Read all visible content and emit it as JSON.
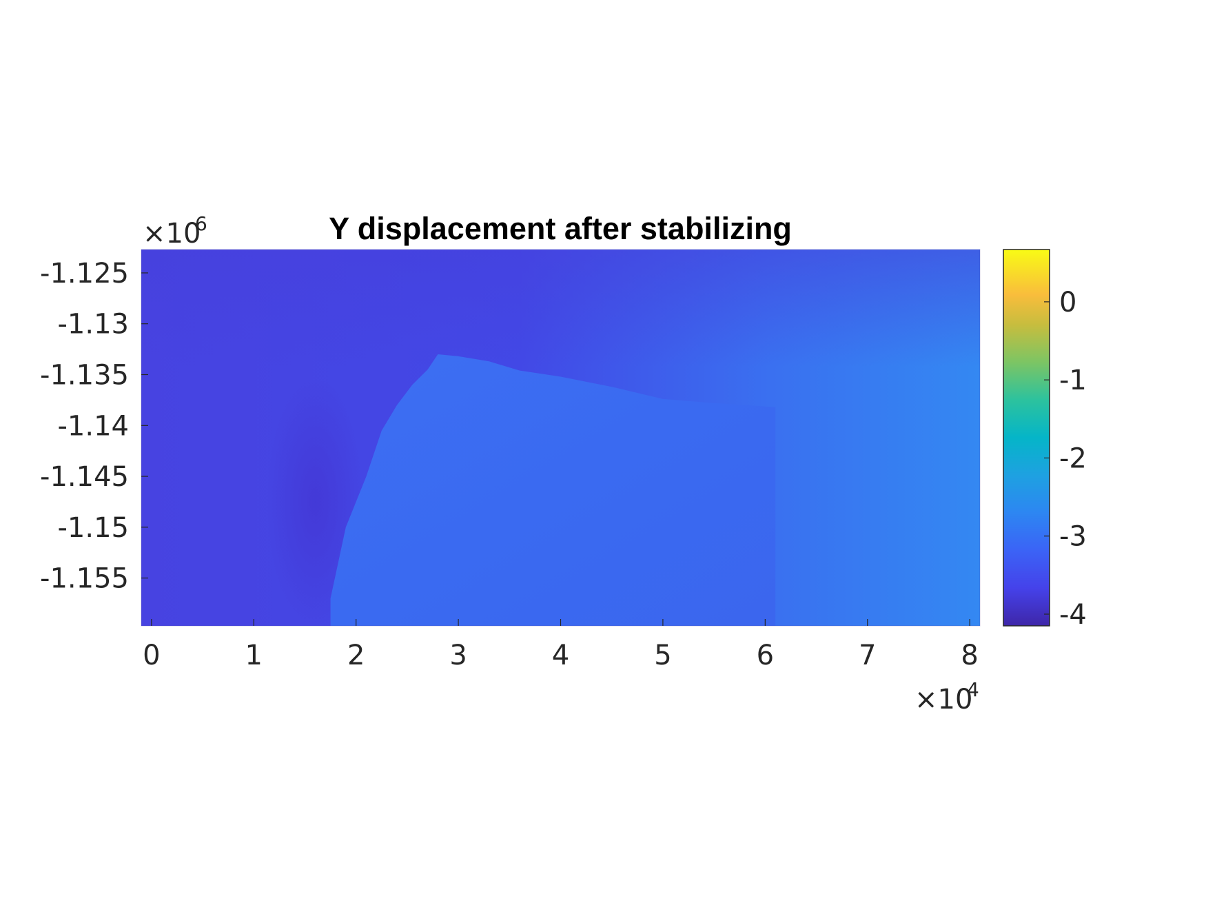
{
  "chart_data": {
    "type": "heatmap",
    "title": "Y displacement after stabilizing",
    "x_axis": {
      "ticks": [
        0,
        10000,
        20000,
        30000,
        40000,
        50000,
        60000,
        70000,
        80000
      ],
      "tick_labels": [
        "0",
        "1",
        "2",
        "3",
        "4",
        "5",
        "6",
        "7",
        "8"
      ],
      "multiplier": {
        "base": "×10",
        "exponent": "4"
      },
      "range": [
        -1000,
        81000
      ]
    },
    "y_axis": {
      "ticks": [
        -1125000,
        -1130000,
        -1135000,
        -1140000,
        -1145000,
        -1150000,
        -1155000
      ],
      "tick_labels": [
        "-1.125",
        "-1.13",
        "-1.135",
        "-1.14",
        "-1.145",
        "-1.15",
        "-1.155"
      ],
      "multiplier": {
        "base": "×10",
        "exponent": "6"
      },
      "range": [
        -1159700,
        -1122700
      ]
    },
    "colorbar": {
      "colormap": "parula",
      "ticks": [
        0,
        -1,
        -2,
        -3,
        -4
      ],
      "tick_labels": [
        "0",
        "-1",
        "-2",
        "-3",
        "-4"
      ],
      "range": [
        -4.15,
        0.67
      ]
    },
    "field_summary": {
      "background_value_left": -3.6,
      "background_value_right": -3.0,
      "raised_block_value": -3.2,
      "raised_block_outline_x": [
        17500,
        19000,
        21000,
        22500,
        24000,
        25500,
        27000,
        28000,
        30000,
        33000,
        36000,
        40000,
        45000,
        50000,
        55000,
        58000,
        61000,
        61000,
        17500
      ],
      "raised_block_outline_y": [
        -1157000,
        -1150000,
        -1145000,
        -1140500,
        -1138000,
        -1136000,
        -1134500,
        -1133000,
        -1133200,
        -1133700,
        -1134600,
        -1135200,
        -1136200,
        -1137400,
        -1137800,
        -1138000,
        -1138200,
        -1159700,
        -1159700
      ],
      "dark_pocket_value": -3.8
    },
    "grid": false
  },
  "colors": {
    "axes_text": "#262626",
    "title": "#000000",
    "plot_bg_dark": "#4540e0",
    "plot_bg_mid": "#3b63f0",
    "plot_bg_light": "#3488f2"
  }
}
